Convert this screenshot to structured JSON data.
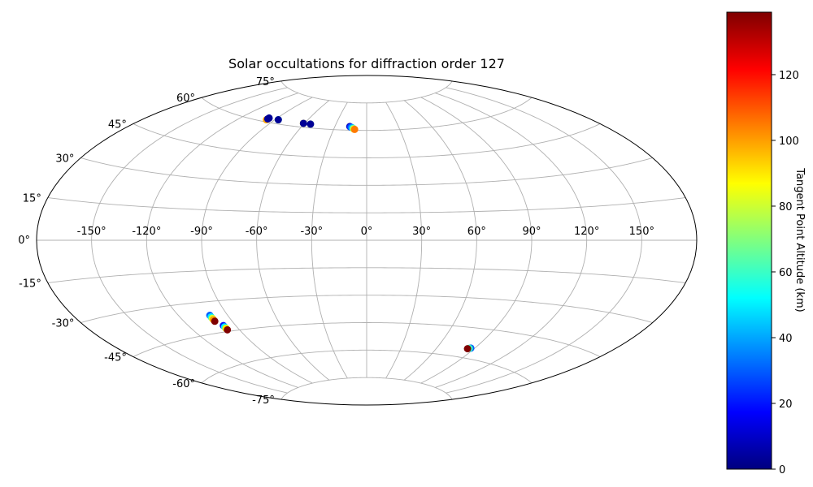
{
  "chart_data": {
    "type": "scatter",
    "projection": "aitoff",
    "title": "Solar occultations for diffraction order 127",
    "lon_ticks": [
      "-150°",
      "-120°",
      "-90°",
      "-60°",
      "-30°",
      "0°",
      "30°",
      "60°",
      "90°",
      "120°",
      "150°"
    ],
    "lat_ticks": [
      "75°",
      "60°",
      "45°",
      "30°",
      "15°",
      "0°",
      "-15°",
      "-30°",
      "-45°",
      "-60°",
      "-75°"
    ],
    "grid": true,
    "colorbar": {
      "label": "Tangent Point Altitude (km)",
      "ticks": [
        "0",
        "20",
        "40",
        "60",
        "80",
        "100",
        "120"
      ],
      "tick_values": [
        0,
        20,
        40,
        60,
        80,
        100,
        120
      ],
      "range": [
        0,
        139
      ],
      "colormap": "jet"
    },
    "points": [
      {
        "lon": -97,
        "lat": 61,
        "alt": 100
      },
      {
        "lon": -97,
        "lat": 61.5,
        "alt": 5
      },
      {
        "lon": -97,
        "lat": 62,
        "alt": 3
      },
      {
        "lon": -87,
        "lat": 62,
        "alt": 60
      },
      {
        "lon": -87,
        "lat": 62,
        "alt": 3
      },
      {
        "lon": -61,
        "lat": 62,
        "alt": 90
      },
      {
        "lon": -61,
        "lat": 62,
        "alt": 3
      },
      {
        "lon": -54,
        "lat": 62,
        "alt": 70
      },
      {
        "lon": -54,
        "lat": 62,
        "alt": 3
      },
      {
        "lon": -16,
        "lat": 62,
        "alt": 3
      },
      {
        "lon": -15.5,
        "lat": 61.8,
        "alt": 15
      },
      {
        "lon": -15,
        "lat": 61.7,
        "alt": 25
      },
      {
        "lon": -14,
        "lat": 61.5,
        "alt": 35
      },
      {
        "lon": -13,
        "lat": 61.2,
        "alt": 45
      },
      {
        "lon": -12.5,
        "lat": 61,
        "alt": 60
      },
      {
        "lon": -12,
        "lat": 60.8,
        "alt": 75
      },
      {
        "lon": -11.5,
        "lat": 60.6,
        "alt": 90
      },
      {
        "lon": -11,
        "lat": 60.5,
        "alt": 105
      },
      {
        "lon": -101,
        "lat": -36.5,
        "alt": 30
      },
      {
        "lon": -101,
        "lat": -37.3,
        "alt": 50
      },
      {
        "lon": -101,
        "lat": -38,
        "alt": 80
      },
      {
        "lon": -101,
        "lat": -38.7,
        "alt": 100
      },
      {
        "lon": -101,
        "lat": -39.5,
        "alt": 139
      },
      {
        "lon": -98,
        "lat": -42,
        "alt": 20
      },
      {
        "lon": -98,
        "lat": -42.7,
        "alt": 50
      },
      {
        "lon": -98,
        "lat": -43.4,
        "alt": 90
      },
      {
        "lon": -98,
        "lat": -44.2,
        "alt": 139
      },
      {
        "lon": 87,
        "lat": -55,
        "alt": 30
      },
      {
        "lon": 86,
        "lat": -55.2,
        "alt": 60
      },
      {
        "lon": 85,
        "lat": -55.5,
        "alt": 139
      }
    ]
  }
}
